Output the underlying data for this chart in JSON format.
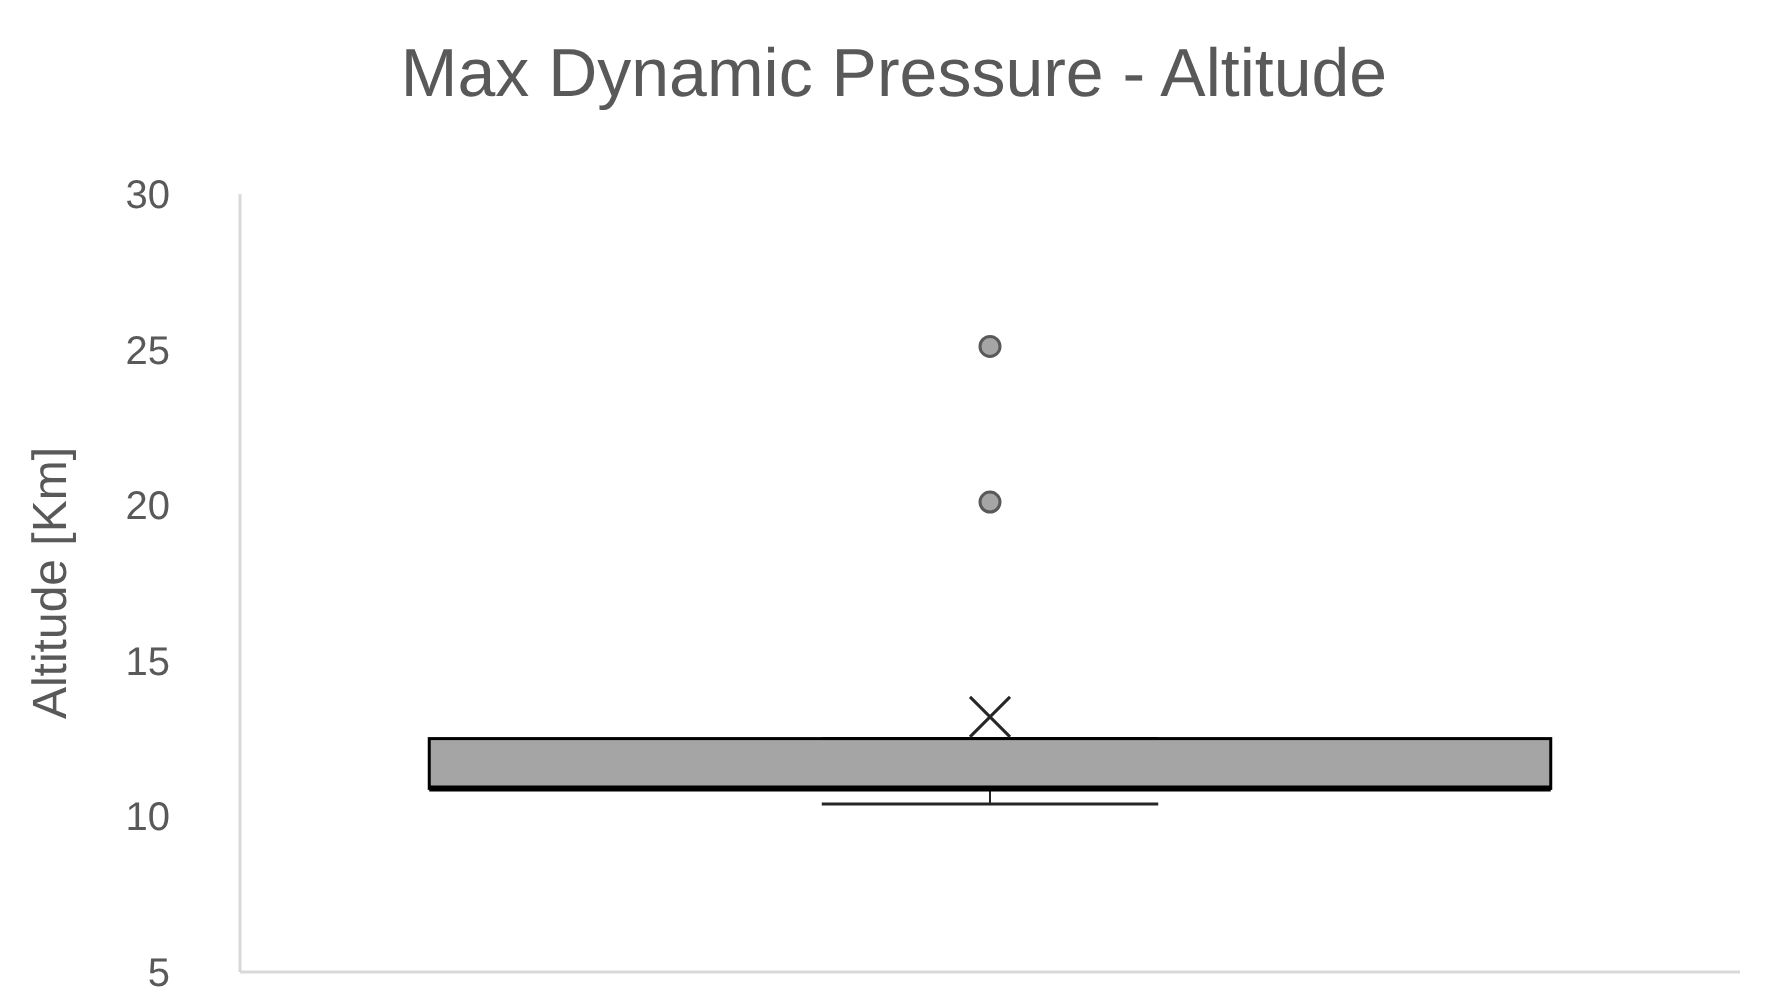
{
  "chart_data": {
    "type": "box",
    "title": "Max Dynamic Pressure - Altitude",
    "ylabel": "Altitude [Km]",
    "categories": [
      null
    ],
    "color": "#a5a5a5",
    "marker": "cross",
    "boxes": [
      {
        "low": 10.4,
        "q1": 10.9,
        "median": 10.9,
        "q3": 12.5,
        "high": 12.5,
        "mean": 13.2,
        "outliers": [
          20.1,
          25.1
        ]
      }
    ],
    "ylim": [
      5,
      30
    ],
    "yticks": [
      5,
      10,
      15,
      20,
      25,
      30
    ],
    "grid": false
  }
}
